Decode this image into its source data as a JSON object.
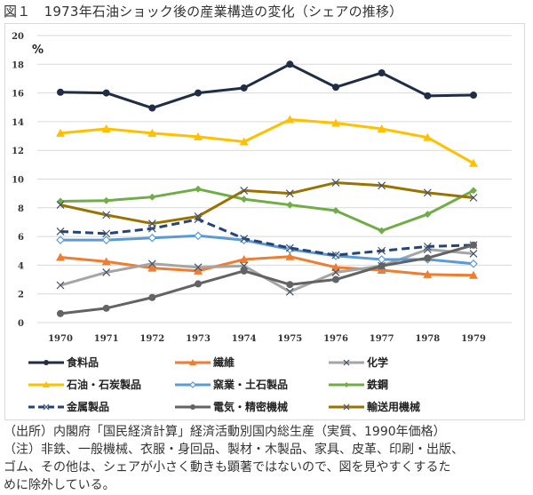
{
  "title": "図１　1973年石油ショック後の産業構造の変化（シェアの推移）",
  "notes": {
    "source": "（出所）内閣府「国民経済計算」経済活動別国内総生産（実質、1990年価格）",
    "note_line1": "（注）非鉄、一般機械、衣服・身回品、製材・木製品、家具、皮革、印刷・出版、",
    "note_line2": "ゴム、その他は、シェアが小さく動きも顕著ではないので、図を見やすくするた",
    "note_line3": "めに除外している。"
  },
  "chart_data": {
    "type": "line",
    "title": "1973年石油ショック後の産業構造の変化（シェアの推移）",
    "xlabel": "",
    "ylabel": "%",
    "x": [
      "1970",
      "1971",
      "1972",
      "1973",
      "1974",
      "1975",
      "1976",
      "1977",
      "1978",
      "1979"
    ],
    "ylim": [
      0,
      20
    ],
    "yticks": [
      "0",
      "2",
      "4",
      "6",
      "8",
      "10",
      "12",
      "14",
      "16",
      "18",
      "20"
    ],
    "grid": true,
    "legend_position": "bottom",
    "series": [
      {
        "name": "食料品",
        "color": "#1f2d45",
        "marker": "circle",
        "dash": false,
        "values": [
          16.05,
          16.0,
          14.95,
          16.0,
          16.35,
          18.0,
          16.4,
          17.4,
          15.8,
          15.85
        ]
      },
      {
        "name": "繊維",
        "color": "#ed7d31",
        "marker": "triangle",
        "dash": false,
        "values": [
          4.55,
          4.25,
          3.8,
          3.6,
          4.4,
          4.6,
          3.85,
          3.65,
          3.35,
          3.3
        ]
      },
      {
        "name": "化学",
        "color": "#a5a5a5",
        "marker": "x",
        "dash": false,
        "values": [
          2.6,
          3.5,
          4.1,
          3.85,
          3.95,
          2.15,
          3.5,
          3.95,
          5.1,
          4.8
        ]
      },
      {
        "name": "石油・石炭製品",
        "color": "#ffc000",
        "marker": "triangle",
        "dash": false,
        "values": [
          13.2,
          13.5,
          13.2,
          12.95,
          12.6,
          14.15,
          13.9,
          13.5,
          12.9,
          11.1
        ]
      },
      {
        "name": "窯業・土石製品",
        "color": "#5b9bd5",
        "marker": "diamond-open",
        "dash": false,
        "values": [
          5.75,
          5.75,
          5.9,
          6.05,
          5.75,
          5.1,
          4.65,
          4.4,
          4.4,
          4.1
        ]
      },
      {
        "name": "鉄鋼",
        "color": "#70ad47",
        "marker": "diamond",
        "dash": false,
        "values": [
          8.45,
          8.5,
          8.75,
          9.3,
          8.6,
          8.2,
          7.8,
          6.4,
          7.55,
          9.2
        ]
      },
      {
        "name": "金属製品",
        "color": "#264478",
        "marker": "x",
        "dash": true,
        "values": [
          6.35,
          6.2,
          6.55,
          7.2,
          5.85,
          5.2,
          4.7,
          5.0,
          5.3,
          5.4
        ]
      },
      {
        "name": "電気・精密機械",
        "color": "#636363",
        "marker": "circle",
        "dash": false,
        "values": [
          0.63,
          1.0,
          1.75,
          2.7,
          3.6,
          2.65,
          3.0,
          3.95,
          4.5,
          5.4
        ]
      },
      {
        "name": "輸送用機械",
        "color": "#997300",
        "marker": "x",
        "dash": false,
        "values": [
          8.2,
          7.5,
          6.9,
          7.4,
          9.2,
          9.0,
          9.75,
          9.55,
          9.05,
          8.7
        ]
      }
    ]
  }
}
